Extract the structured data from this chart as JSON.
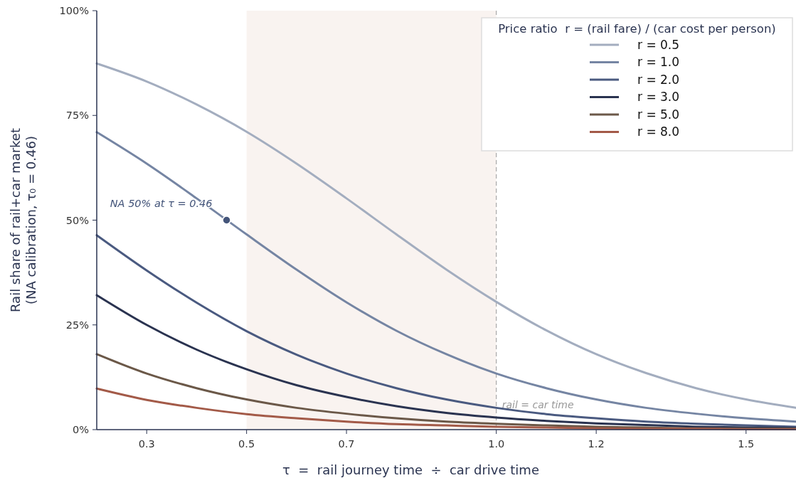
{
  "chart_data": {
    "type": "line",
    "xlabel": "τ  =  rail journey time  ÷  car drive time",
    "ylabel": "Rail share of rail+car market\n(NA calibration, τ₀ = 0.46)",
    "legend_title": "Price ratio  r = (rail fare) / (car cost per person)",
    "x": [
      0.2,
      0.3,
      0.4,
      0.5,
      0.6,
      0.7,
      0.8,
      0.9,
      1.0,
      1.1,
      1.2,
      1.3,
      1.4,
      1.5,
      1.6
    ],
    "series": [
      {
        "name": "r = 0.5",
        "color": "#a3adbf",
        "values": [
          87.4,
          83.1,
          77.6,
          71.1,
          63.5,
          55.2,
          46.6,
          38.2,
          30.5,
          23.7,
          18.0,
          13.5,
          9.9,
          7.2,
          5.2
        ]
      },
      {
        "name": "r = 1.0",
        "color": "#7585a3",
        "values": [
          71.0,
          63.5,
          55.2,
          46.6,
          38.2,
          30.4,
          23.6,
          18.0,
          13.4,
          9.9,
          7.2,
          5.2,
          3.8,
          2.7,
          1.9
        ]
      },
      {
        "name": "r = 2.0",
        "color": "#4a5a80",
        "values": [
          46.4,
          38.0,
          30.3,
          23.5,
          17.9,
          13.4,
          9.9,
          7.2,
          5.2,
          3.7,
          2.7,
          1.9,
          1.4,
          1.0,
          0.7
        ]
      },
      {
        "name": "r = 3.0",
        "color": "#2a3350",
        "values": [
          32.1,
          25.0,
          19.1,
          14.4,
          10.6,
          7.8,
          5.6,
          4.0,
          2.9,
          2.1,
          1.5,
          1.1,
          0.7,
          0.5,
          0.4
        ]
      },
      {
        "name": "r = 5.0",
        "color": "#6b5848",
        "values": [
          18.0,
          13.4,
          9.9,
          7.2,
          5.2,
          3.8,
          2.7,
          1.9,
          1.4,
          1.0,
          0.7,
          0.5,
          0.3,
          0.2,
          0.2
        ]
      },
      {
        "name": "r = 8.0",
        "color": "#a35a48",
        "values": [
          9.8,
          7.1,
          5.2,
          3.7,
          2.7,
          1.9,
          1.3,
          1.0,
          0.7,
          0.5,
          0.3,
          0.2,
          0.2,
          0.1,
          0.1
        ]
      },
      {
        "type": "scatter",
        "color": "#44557a",
        "marker": "circle",
        "x": [
          0.46
        ],
        "values": [
          50
        ]
      }
    ],
    "annotations": [
      {
        "text": "NA 50% at τ = 0.46",
        "x": 0.46,
        "y": 50
      }
    ],
    "ref_lines": [
      {
        "axis": "x",
        "value": 1.0,
        "label": "rail = car time",
        "color": "#999999",
        "line_style": "dashed"
      }
    ],
    "bands": [
      {
        "axis": "x",
        "from": 0.5,
        "to": 1.0,
        "color": "#f9f3f0"
      }
    ],
    "xlim": [
      0.2,
      1.6
    ],
    "xticks": [
      0.3,
      0.5,
      0.7,
      {
        "value": 1.0,
        "label": "1.0"
      },
      1.2,
      1.5
    ],
    "ylim": [
      0,
      100
    ],
    "yticks": [
      {
        "value": 0,
        "label": "0%"
      },
      {
        "value": 25,
        "label": "25%"
      },
      {
        "value": 50,
        "label": "50%"
      },
      {
        "value": 75,
        "label": "75%"
      },
      {
        "value": 100,
        "label": "100%"
      }
    ],
    "legend": "top right",
    "grid": false,
    "marker": "none",
    "line_style": "solid"
  }
}
